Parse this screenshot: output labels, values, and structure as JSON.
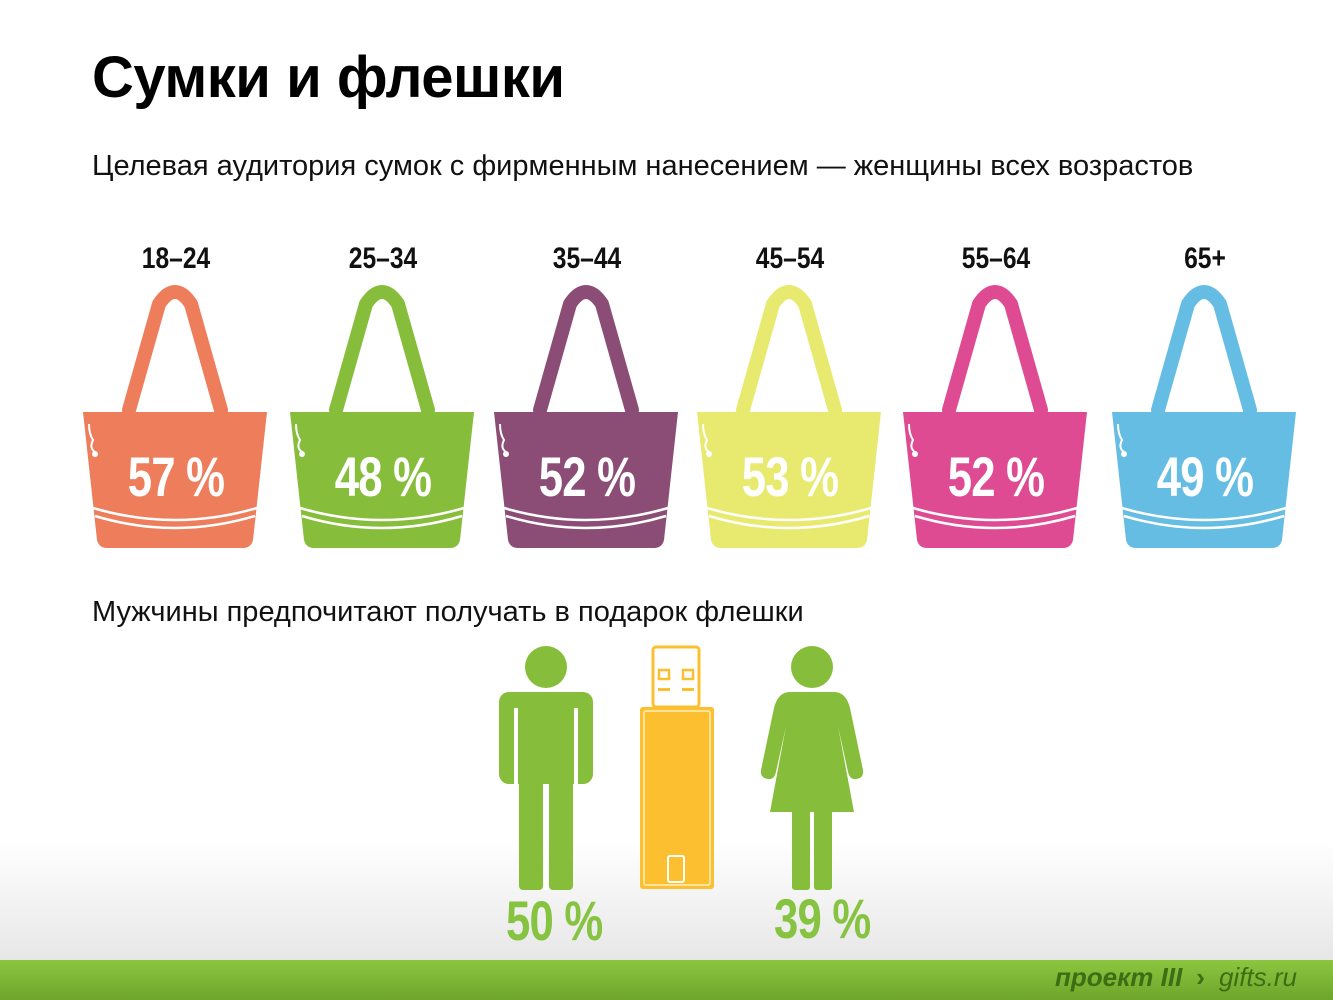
{
  "title": "Сумки и флешки",
  "subtitle": "Целевая аудитория сумок с фирменным нанесением — женщины всех возрастов",
  "bags": [
    {
      "age": "18–24",
      "percent": "57 %",
      "color": "#ee7d5c"
    },
    {
      "age": "25–34",
      "percent": "48 %",
      "color": "#86bd3a"
    },
    {
      "age": "35–44",
      "percent": "52 %",
      "color": "#8b4d75"
    },
    {
      "age": "45–54",
      "percent": "53 %",
      "color": "#e8ea70"
    },
    {
      "age": "55–64",
      "percent": "52 %",
      "color": "#de4b93"
    },
    {
      "age": "65+",
      "percent": "49 %",
      "color": "#66bde3"
    }
  ],
  "men_text": "Мужчины предпочитают получать в подарок флешки",
  "men": {
    "percent": "50 %",
    "icon": "man-icon",
    "color": "#86bd3a"
  },
  "flash_drive": {
    "icon": "usb-flash-drive-icon",
    "color": "#fbbf2f"
  },
  "women": {
    "percent": "39 %",
    "icon": "woman-icon",
    "color": "#86bd3a"
  },
  "percent_text_color": "#86c340",
  "footer": {
    "brand": "проект III",
    "separator": "›",
    "site": "gifts.ru"
  }
}
